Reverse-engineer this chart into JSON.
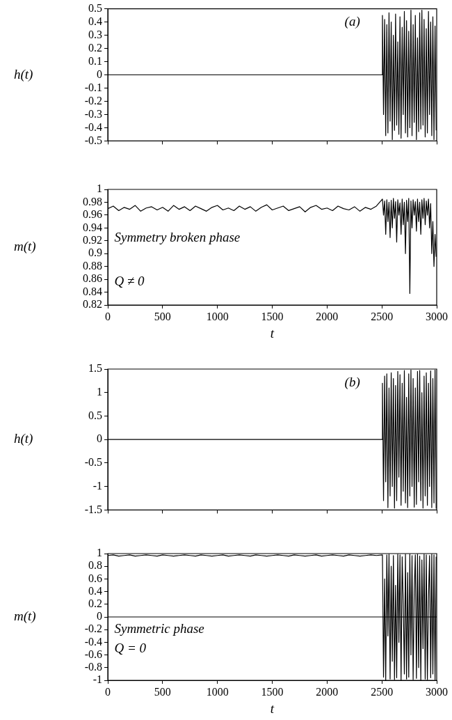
{
  "chart_data": [
    {
      "type": "line",
      "ylabel": "h(t)",
      "annotations": [
        "(a)"
      ],
      "tick_labels": "y",
      "xlim": [
        0,
        3000
      ],
      "xticks": [
        0,
        500,
        1000,
        1500,
        2000,
        2500,
        3000
      ],
      "ylim": [
        -0.5,
        0.5
      ],
      "yticks": [
        -0.5,
        -0.4,
        -0.3,
        -0.2,
        -0.1,
        0,
        0.1,
        0.2,
        0.3,
        0.4,
        0.5
      ],
      "x": [
        0,
        2500,
        2505,
        2515,
        2525,
        2535,
        2545,
        2555,
        2565,
        2575,
        2585,
        2595,
        2605,
        2615,
        2625,
        2635,
        2645,
        2655,
        2665,
        2675,
        2685,
        2695,
        2705,
        2715,
        2725,
        2735,
        2745,
        2755,
        2765,
        2775,
        2785,
        2795,
        2805,
        2815,
        2825,
        2835,
        2845,
        2855,
        2865,
        2875,
        2885,
        2895,
        2905,
        2915,
        2925,
        2935,
        2945,
        2955,
        2965,
        2975,
        2985,
        2995
      ],
      "series": [
        {
          "color": "#000000",
          "values": [
            0,
            0,
            0.45,
            -0.3,
            0.42,
            -0.46,
            0.38,
            -0.44,
            0.47,
            -0.35,
            0.4,
            -0.49,
            0.3,
            -0.42,
            0.46,
            -0.38,
            0.25,
            -0.45,
            0.44,
            -0.48,
            0.36,
            -0.3,
            0.48,
            -0.44,
            0.41,
            -0.47,
            0.33,
            -0.4,
            0.49,
            -0.46,
            0.38,
            -0.36,
            0.45,
            -0.49,
            0.28,
            -0.43,
            0.47,
            -0.41,
            0.49,
            -0.38,
            0.42,
            -0.47,
            0.35,
            -0.44,
            0.48,
            -0.3,
            0.4,
            -0.46,
            0.44,
            -0.49,
            0.37,
            -0.42
          ]
        }
      ]
    },
    {
      "type": "line",
      "ylabel": "m(t)",
      "xlabel": "t",
      "annotations": [
        "Symmetry broken phase",
        "Q ≠ 0"
      ],
      "xlim": [
        0,
        3000
      ],
      "xticks": [
        0,
        500,
        1000,
        1500,
        2000,
        2500,
        3000
      ],
      "ylim": [
        0.82,
        1
      ],
      "yticks": [
        0.82,
        0.84,
        0.86,
        0.88,
        0.9,
        0.92,
        0.94,
        0.96,
        0.98,
        1
      ],
      "x": [
        0,
        50,
        100,
        150,
        200,
        250,
        300,
        350,
        400,
        450,
        500,
        550,
        600,
        650,
        700,
        750,
        800,
        850,
        900,
        950,
        1000,
        1050,
        1100,
        1150,
        1200,
        1250,
        1300,
        1350,
        1400,
        1450,
        1500,
        1550,
        1600,
        1650,
        1700,
        1750,
        1800,
        1850,
        1900,
        1950,
        2000,
        2050,
        2100,
        2150,
        2200,
        2250,
        2300,
        2350,
        2400,
        2450,
        2505,
        2515,
        2525,
        2535,
        2545,
        2555,
        2565,
        2575,
        2585,
        2595,
        2605,
        2615,
        2625,
        2635,
        2645,
        2655,
        2665,
        2675,
        2685,
        2695,
        2705,
        2715,
        2725,
        2735,
        2745,
        2755,
        2765,
        2775,
        2785,
        2795,
        2805,
        2815,
        2825,
        2835,
        2845,
        2855,
        2865,
        2875,
        2885,
        2895,
        2905,
        2915,
        2925,
        2935,
        2945,
        2955,
        2965,
        2975,
        2985,
        2995
      ],
      "series": [
        {
          "color": "#000000",
          "values": [
            0.97,
            0.974,
            0.967,
            0.972,
            0.969,
            0.975,
            0.966,
            0.971,
            0.973,
            0.968,
            0.972,
            0.966,
            0.975,
            0.969,
            0.973,
            0.967,
            0.974,
            0.97,
            0.966,
            0.972,
            0.975,
            0.968,
            0.971,
            0.967,
            0.974,
            0.969,
            0.973,
            0.966,
            0.972,
            0.976,
            0.968,
            0.971,
            0.974,
            0.967,
            0.97,
            0.973,
            0.965,
            0.972,
            0.975,
            0.969,
            0.971,
            0.967,
            0.974,
            0.97,
            0.968,
            0.973,
            0.966,
            0.972,
            0.969,
            0.974,
            0.985,
            0.96,
            0.982,
            0.93,
            0.984,
            0.95,
            0.98,
            0.925,
            0.983,
            0.94,
            0.986,
            0.955,
            0.981,
            0.918,
            0.984,
            0.96,
            0.979,
            0.93,
            0.985,
            0.945,
            0.98,
            0.9,
            0.983,
            0.95,
            0.986,
            0.838,
            0.982,
            0.94,
            0.984,
            0.96,
            0.981,
            0.935,
            0.985,
            0.95,
            0.98,
            0.93,
            0.984,
            0.955,
            0.986,
            0.945,
            0.982,
            0.96,
            0.985,
            0.94,
            0.978,
            0.9,
            0.95,
            0.88,
            0.93,
            0.895
          ]
        }
      ]
    },
    {
      "type": "line",
      "ylabel": "h(t)",
      "annotations": [
        "(b)"
      ],
      "tick_labels": "y",
      "xlim": [
        0,
        3000
      ],
      "xticks": [
        0,
        500,
        1000,
        1500,
        2000,
        2500,
        3000
      ],
      "ylim": [
        -1.5,
        1.5
      ],
      "yticks": [
        -1.5,
        -1,
        -0.5,
        0,
        0.5,
        1,
        1.5
      ],
      "x": [
        0,
        2500,
        2505,
        2515,
        2525,
        2535,
        2545,
        2555,
        2565,
        2575,
        2585,
        2595,
        2605,
        2615,
        2625,
        2635,
        2645,
        2655,
        2665,
        2675,
        2685,
        2695,
        2705,
        2715,
        2725,
        2735,
        2745,
        2755,
        2765,
        2775,
        2785,
        2795,
        2805,
        2815,
        2825,
        2835,
        2845,
        2855,
        2865,
        2875,
        2885,
        2895,
        2905,
        2915,
        2925,
        2935,
        2945,
        2955,
        2965,
        2975,
        2985,
        2995
      ],
      "series": [
        {
          "color": "#000000",
          "values": [
            0,
            0,
            1.2,
            -1.3,
            1.35,
            -0.9,
            1.4,
            -1.45,
            1.1,
            -1.2,
            1.42,
            -1.0,
            1.3,
            -1.46,
            1.15,
            -1.3,
            1.45,
            -0.8,
            1.38,
            -1.4,
            1.2,
            -1.1,
            1.47,
            -1.35,
            0.9,
            -1.45,
            1.4,
            -1.2,
            1.48,
            -1.0,
            1.3,
            -1.44,
            1.1,
            -1.38,
            1.45,
            -0.9,
            1.47,
            -1.3,
            1.0,
            -1.46,
            1.35,
            -1.2,
            1.42,
            -1.4,
            1.2,
            -1.0,
            1.46,
            -1.45,
            1.3,
            -1.35,
            1.48,
            -1.47
          ]
        }
      ]
    },
    {
      "type": "line",
      "ylabel": "m(t)",
      "xlabel": "t",
      "annotations": [
        "Symmetric phase",
        "Q = 0"
      ],
      "xlim": [
        0,
        3000
      ],
      "xticks": [
        0,
        500,
        1000,
        1500,
        2000,
        2500,
        3000
      ],
      "ylim": [
        -1,
        1
      ],
      "yticks": [
        -1,
        -0.8,
        -0.6,
        -0.4,
        -0.2,
        0,
        0.2,
        0.4,
        0.6,
        0.8,
        1
      ],
      "ref_lines": [
        {
          "axis": "y",
          "value": 0
        }
      ],
      "x": [
        0,
        50,
        100,
        150,
        200,
        250,
        300,
        350,
        400,
        450,
        500,
        550,
        600,
        650,
        700,
        750,
        800,
        850,
        900,
        950,
        1000,
        1050,
        1100,
        1150,
        1200,
        1250,
        1300,
        1350,
        1400,
        1450,
        1500,
        1550,
        1600,
        1650,
        1700,
        1750,
        1800,
        1850,
        1900,
        1950,
        2000,
        2050,
        2100,
        2150,
        2200,
        2250,
        2300,
        2350,
        2400,
        2450,
        2505,
        2515,
        2525,
        2535,
        2545,
        2555,
        2565,
        2575,
        2585,
        2595,
        2605,
        2615,
        2625,
        2635,
        2645,
        2655,
        2665,
        2675,
        2685,
        2695,
        2705,
        2715,
        2725,
        2735,
        2745,
        2755,
        2765,
        2775,
        2785,
        2795,
        2805,
        2815,
        2825,
        2835,
        2845,
        2855,
        2865,
        2875,
        2885,
        2895,
        2905,
        2915,
        2925,
        2935,
        2945,
        2955,
        2965,
        2975,
        2985,
        2995
      ],
      "series": [
        {
          "color": "#000000",
          "values": [
            0.97,
            0.98,
            0.96,
            0.97,
            0.98,
            0.96,
            0.97,
            0.98,
            0.97,
            0.96,
            0.98,
            0.97,
            0.96,
            0.97,
            0.98,
            0.97,
            0.96,
            0.98,
            0.97,
            0.96,
            0.97,
            0.98,
            0.96,
            0.97,
            0.98,
            0.97,
            0.96,
            0.98,
            0.97,
            0.96,
            0.97,
            0.98,
            0.97,
            0.96,
            0.98,
            0.97,
            0.96,
            0.97,
            0.98,
            0.96,
            0.97,
            0.98,
            0.97,
            0.96,
            0.98,
            0.97,
            0.96,
            0.97,
            0.98,
            0.97,
            0.98,
            -0.95,
            0.6,
            -1,
            0.98,
            -0.3,
            0.99,
            -0.98,
            0.8,
            -0.7,
            0.97,
            -0.99,
            0.5,
            -0.96,
            0.99,
            -0.4,
            0.98,
            -1,
            0.95,
            0.2,
            -0.9,
            0.99,
            -0.98,
            0.7,
            -0.95,
            0.99,
            -0.6,
            0.97,
            -0.99,
            0.4,
            0.98,
            -0.97,
            0.99,
            -0.8,
            0.96,
            -1,
            0.9,
            -0.5,
            0.99,
            -0.98,
            0.98,
            -0.99,
            0.3,
            0.97,
            -0.96,
            0.99,
            -0.9,
            0.98,
            -0.99,
            0.95
          ]
        }
      ]
    }
  ]
}
